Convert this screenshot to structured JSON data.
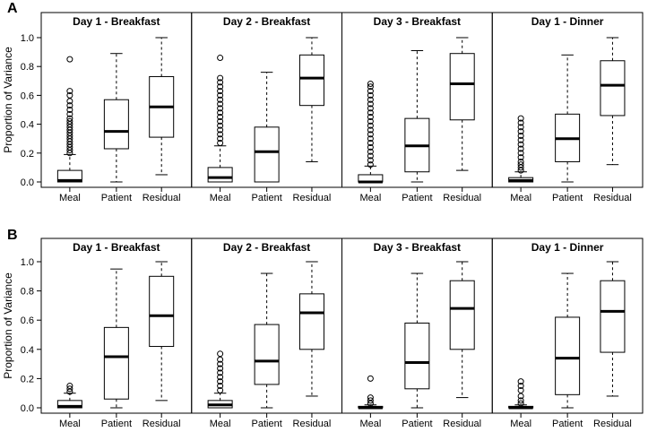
{
  "chart_data": {
    "type": "boxplot",
    "ylabel": "Proportion of Variance",
    "yticks": [
      "0.0",
      "0.2",
      "0.4",
      "0.6",
      "0.8",
      "1.0"
    ],
    "ylim": [
      0,
      1
    ],
    "categories": [
      "Meal",
      "Patient",
      "Residual"
    ],
    "rows": [
      {
        "label": "A",
        "panels": [
          {
            "title": "Day 1 - Breakfast",
            "boxes": [
              {
                "category": "Meal",
                "min": 0.0,
                "q1": 0.0,
                "median": 0.01,
                "q3": 0.08,
                "max": 0.19,
                "outliers": [
                  0.2,
                  0.22,
                  0.24,
                  0.26,
                  0.28,
                  0.3,
                  0.32,
                  0.34,
                  0.36,
                  0.38,
                  0.4,
                  0.42,
                  0.44,
                  0.47,
                  0.5,
                  0.53,
                  0.56,
                  0.6,
                  0.63,
                  0.85
                ]
              },
              {
                "category": "Patient",
                "min": 0.0,
                "q1": 0.23,
                "median": 0.35,
                "q3": 0.57,
                "max": 0.89,
                "outliers": []
              },
              {
                "category": "Residual",
                "min": 0.05,
                "q1": 0.31,
                "median": 0.52,
                "q3": 0.73,
                "max": 1.0,
                "outliers": []
              }
            ]
          },
          {
            "title": "Day 2 - Breakfast",
            "boxes": [
              {
                "category": "Meal",
                "min": 0.0,
                "q1": 0.0,
                "median": 0.03,
                "q3": 0.1,
                "max": 0.25,
                "outliers": [
                  0.27,
                  0.3,
                  0.33,
                  0.36,
                  0.39,
                  0.42,
                  0.45,
                  0.48,
                  0.51,
                  0.54,
                  0.57,
                  0.6,
                  0.63,
                  0.66,
                  0.69,
                  0.72,
                  0.86
                ]
              },
              {
                "category": "Patient",
                "min": 0.0,
                "q1": 0.0,
                "median": 0.21,
                "q3": 0.38,
                "max": 0.76,
                "outliers": []
              },
              {
                "category": "Residual",
                "min": 0.14,
                "q1": 0.53,
                "median": 0.72,
                "q3": 0.88,
                "max": 1.0,
                "outliers": []
              }
            ]
          },
          {
            "title": "Day 3 - Breakfast",
            "boxes": [
              {
                "category": "Meal",
                "min": 0.0,
                "q1": 0.0,
                "median": 0.0,
                "q3": 0.05,
                "max": 0.11,
                "outliers": [
                  0.12,
                  0.15,
                  0.18,
                  0.21,
                  0.24,
                  0.27,
                  0.3,
                  0.33,
                  0.36,
                  0.39,
                  0.42,
                  0.45,
                  0.48,
                  0.51,
                  0.54,
                  0.57,
                  0.6,
                  0.63,
                  0.66,
                  0.68
                ]
              },
              {
                "category": "Patient",
                "min": 0.0,
                "q1": 0.07,
                "median": 0.25,
                "q3": 0.44,
                "max": 0.91,
                "outliers": []
              },
              {
                "category": "Residual",
                "min": 0.08,
                "q1": 0.43,
                "median": 0.68,
                "q3": 0.89,
                "max": 1.0,
                "outliers": []
              }
            ]
          },
          {
            "title": "Day 1 - Dinner",
            "boxes": [
              {
                "category": "Meal",
                "min": 0.0,
                "q1": 0.0,
                "median": 0.01,
                "q3": 0.03,
                "max": 0.07,
                "outliers": [
                  0.08,
                  0.1,
                  0.12,
                  0.14,
                  0.17,
                  0.2,
                  0.23,
                  0.26,
                  0.29,
                  0.32,
                  0.35,
                  0.38,
                  0.41,
                  0.44
                ]
              },
              {
                "category": "Patient",
                "min": 0.0,
                "q1": 0.14,
                "median": 0.3,
                "q3": 0.47,
                "max": 0.88,
                "outliers": []
              },
              {
                "category": "Residual",
                "min": 0.12,
                "q1": 0.46,
                "median": 0.67,
                "q3": 0.84,
                "max": 1.0,
                "outliers": []
              }
            ]
          }
        ]
      },
      {
        "label": "B",
        "panels": [
          {
            "title": "Day 1 - Breakfast",
            "boxes": [
              {
                "category": "Meal",
                "min": 0.0,
                "q1": 0.0,
                "median": 0.01,
                "q3": 0.05,
                "max": 0.1,
                "outliers": [
                  0.11,
                  0.13,
                  0.15
                ]
              },
              {
                "category": "Patient",
                "min": 0.0,
                "q1": 0.06,
                "median": 0.35,
                "q3": 0.55,
                "max": 0.95,
                "outliers": []
              },
              {
                "category": "Residual",
                "min": 0.05,
                "q1": 0.42,
                "median": 0.63,
                "q3": 0.9,
                "max": 1.0,
                "outliers": []
              }
            ]
          },
          {
            "title": "Day 2 - Breakfast",
            "boxes": [
              {
                "category": "Meal",
                "min": 0.0,
                "q1": 0.0,
                "median": 0.02,
                "q3": 0.05,
                "max": 0.1,
                "outliers": [
                  0.12,
                  0.15,
                  0.18,
                  0.21,
                  0.24,
                  0.27,
                  0.3,
                  0.33,
                  0.37
                ]
              },
              {
                "category": "Patient",
                "min": 0.0,
                "q1": 0.16,
                "median": 0.32,
                "q3": 0.57,
                "max": 0.92,
                "outliers": []
              },
              {
                "category": "Residual",
                "min": 0.08,
                "q1": 0.4,
                "median": 0.65,
                "q3": 0.78,
                "max": 1.0,
                "outliers": []
              }
            ]
          },
          {
            "title": "Day 3 - Breakfast",
            "boxes": [
              {
                "category": "Meal",
                "min": 0.0,
                "q1": 0.0,
                "median": 0.0,
                "q3": 0.01,
                "max": 0.02,
                "outliers": [
                  0.03,
                  0.05,
                  0.07,
                  0.2
                ]
              },
              {
                "category": "Patient",
                "min": 0.0,
                "q1": 0.13,
                "median": 0.31,
                "q3": 0.58,
                "max": 0.92,
                "outliers": []
              },
              {
                "category": "Residual",
                "min": 0.07,
                "q1": 0.4,
                "median": 0.68,
                "q3": 0.87,
                "max": 1.0,
                "outliers": []
              }
            ]
          },
          {
            "title": "Day 1 - Dinner",
            "boxes": [
              {
                "category": "Meal",
                "min": 0.0,
                "q1": 0.0,
                "median": 0.0,
                "q3": 0.01,
                "max": 0.02,
                "outliers": [
                  0.03,
                  0.05,
                  0.08,
                  0.12,
                  0.15,
                  0.18
                ]
              },
              {
                "category": "Patient",
                "min": 0.0,
                "q1": 0.09,
                "median": 0.34,
                "q3": 0.62,
                "max": 0.92,
                "outliers": []
              },
              {
                "category": "Residual",
                "min": 0.08,
                "q1": 0.38,
                "median": 0.66,
                "q3": 0.87,
                "max": 1.0,
                "outliers": []
              }
            ]
          }
        ]
      }
    ]
  }
}
